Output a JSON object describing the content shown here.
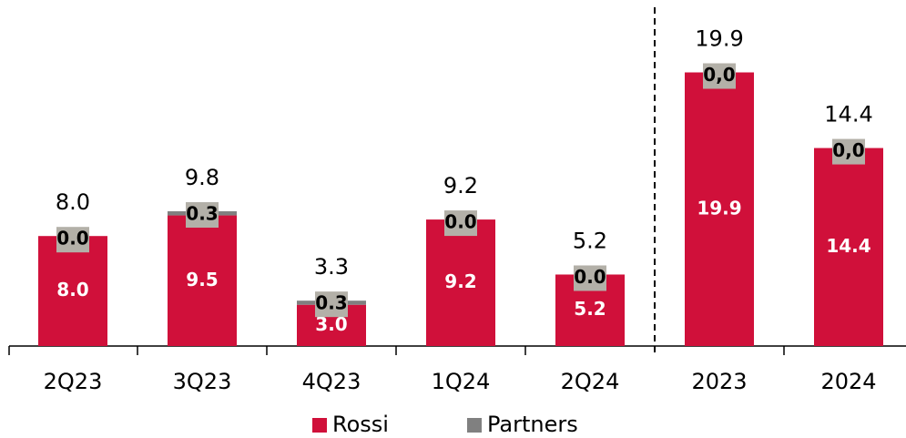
{
  "chart_data": {
    "type": "stacked_bar",
    "categories": [
      "2Q23",
      "3Q23",
      "4Q23",
      "1Q24",
      "2Q24",
      "2023",
      "2024"
    ],
    "series": [
      {
        "name": "Rossi",
        "color": "#d0103a",
        "values": [
          8.0,
          9.5,
          3.0,
          9.2,
          5.2,
          19.9,
          14.4
        ],
        "value_labels": [
          "8.0",
          "9.5",
          "3.0",
          "9.2",
          "5.2",
          "19.9",
          "14.4"
        ]
      },
      {
        "name": "Partners",
        "color": "#808080",
        "values": [
          0.0,
          0.3,
          0.3,
          0.0,
          0.0,
          0.0,
          0.0
        ],
        "value_labels": [
          "0.0",
          "0.3",
          "0.3",
          "0.0",
          "0.0",
          "0,0",
          "0,0"
        ]
      }
    ],
    "totals": {
      "values": [
        8.0,
        9.8,
        3.3,
        9.2,
        5.2,
        19.9,
        14.4
      ],
      "value_labels": [
        "8.0",
        "9.8",
        "3.3",
        "9.2",
        "5.2",
        "19.9",
        "14.4"
      ]
    },
    "ylim": [
      0,
      20
    ],
    "legend": "bottom"
  }
}
